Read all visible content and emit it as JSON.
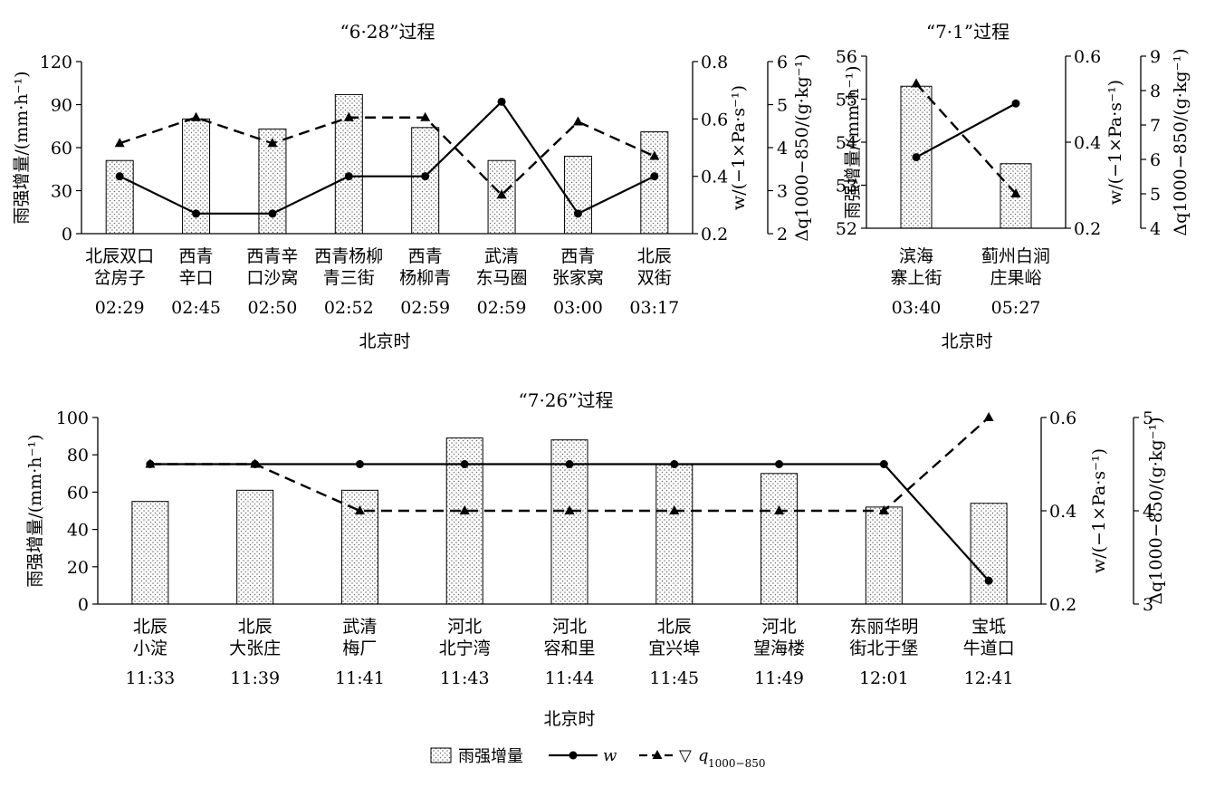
{
  "chart_data": [
    {
      "type": "bar",
      "title": "“6·28”过程",
      "xlabel": "北京时",
      "ylabel": "雨强增量/(mm·h⁻¹)",
      "y2label": "w/(−1×Pa·s⁻¹)",
      "y3label": "Δq1000−850/(g·kg⁻¹)",
      "categories": [
        [
          "北辰双口",
          "岔房子",
          "02:29"
        ],
        [
          "西青",
          "辛口",
          "02:45"
        ],
        [
          "西青辛",
          "口沙窝",
          "02:50"
        ],
        [
          "西青杨柳",
          "青三街",
          "02:52"
        ],
        [
          "西青",
          "杨柳青",
          "02:59"
        ],
        [
          "武清",
          "东马圈",
          "02:59"
        ],
        [
          "西青",
          "张家窝",
          "03:00"
        ],
        [
          "北辰",
          "双街",
          "03:17"
        ]
      ],
      "series": [
        {
          "name": "雨强增量",
          "axis": "left",
          "kind": "bar",
          "values": [
            51,
            80,
            73,
            97,
            74,
            51,
            54,
            71
          ]
        },
        {
          "name": "w",
          "axis": "right1",
          "kind": "line-solid-circle",
          "values": [
            0.4,
            0.27,
            0.27,
            0.4,
            0.4,
            0.66,
            0.27,
            0.4
          ]
        },
        {
          "name": "▽q1000−850",
          "axis": "right2",
          "kind": "line-dashed-triangle",
          "values": [
            4.1,
            4.7,
            4.1,
            4.7,
            4.7,
            2.9,
            4.6,
            3.8
          ]
        }
      ],
      "ylim": [
        0,
        120
      ],
      "yticks": [
        0,
        30,
        60,
        90,
        120
      ],
      "y2lim": [
        0.2,
        0.8
      ],
      "y2ticks": [
        "0.2",
        "0.4",
        "0.6",
        "0.8"
      ],
      "y3lim": [
        2,
        6
      ],
      "y3ticks": [
        "2",
        "3",
        "4",
        "5",
        "6"
      ]
    },
    {
      "type": "bar",
      "title": "“7·1”过程",
      "xlabel": "北京时",
      "ylabel": "雨强增量/(mm·h⁻¹)",
      "y2label": "w/(−1×Pa·s⁻¹)",
      "y3label": "Δq1000−850/(g·kg⁻¹)",
      "categories": [
        [
          "滨海",
          "寨上街",
          "03:40"
        ],
        [
          "蓟州白涧",
          "庄果峪",
          "05:27"
        ]
      ],
      "series": [
        {
          "name": "雨强增量",
          "axis": "left",
          "kind": "bar",
          "values": [
            55.3,
            53.5
          ]
        },
        {
          "name": "w",
          "axis": "right1",
          "kind": "line-solid-circle",
          "values": [
            0.365,
            0.49
          ]
        },
        {
          "name": "▽q1000−850",
          "axis": "right2",
          "kind": "line-dashed-triangle",
          "values": [
            8.2,
            5.0
          ]
        }
      ],
      "ylim": [
        52,
        56
      ],
      "yticks": [
        52,
        53,
        54,
        55,
        56
      ],
      "y2lim": [
        0.2,
        0.6
      ],
      "y2ticks": [
        "0.2",
        "0.4",
        "0.6"
      ],
      "y3lim": [
        4,
        9
      ],
      "y3ticks": [
        "4",
        "5",
        "6",
        "7",
        "8",
        "9"
      ]
    },
    {
      "type": "bar",
      "title": "“7·26”过程",
      "xlabel": "北京时",
      "ylabel": "雨强增量/(mm·h⁻¹)",
      "y2label": "w/(−1×Pa·s⁻¹)",
      "y3label": "Δq1000−850/(g·kg⁻¹)",
      "categories": [
        [
          "北辰",
          "小淀",
          "11:33"
        ],
        [
          "北辰",
          "大张庄",
          "11:39"
        ],
        [
          "武清",
          "梅厂",
          "11:41"
        ],
        [
          "河北",
          "北宁湾",
          "11:43"
        ],
        [
          "河北",
          "容和里",
          "11:44"
        ],
        [
          "北辰",
          "宜兴埠",
          "11:45"
        ],
        [
          "河北",
          "望海楼",
          "11:49"
        ],
        [
          "东丽华明",
          "街北于堡",
          "12:01"
        ],
        [
          "宝坻",
          "牛道口",
          "12:41"
        ]
      ],
      "series": [
        {
          "name": "雨强增量",
          "axis": "left",
          "kind": "bar",
          "values": [
            55,
            61,
            61,
            89,
            88,
            75,
            70,
            52,
            54
          ]
        },
        {
          "name": "w",
          "axis": "right1",
          "kind": "line-solid-circle",
          "values": [
            0.5,
            0.5,
            0.5,
            0.5,
            0.5,
            0.5,
            0.5,
            0.5,
            0.25
          ]
        },
        {
          "name": "▽q1000−850",
          "axis": "right2",
          "kind": "line-dashed-triangle",
          "values": [
            4.5,
            4.5,
            4.0,
            4.0,
            4.0,
            4.0,
            4.0,
            4.0,
            5.0
          ]
        }
      ],
      "ylim": [
        0,
        100
      ],
      "yticks": [
        0,
        20,
        40,
        60,
        80,
        100
      ],
      "y2lim": [
        0.2,
        0.6
      ],
      "y2ticks": [
        "0.2",
        "0.4",
        "0.6"
      ],
      "y3lim": [
        3,
        5
      ],
      "y3ticks": [
        "3",
        "4",
        "5"
      ]
    }
  ],
  "legend": {
    "bar_label": "雨强增量",
    "w_label": "w",
    "q_symbol": "▽",
    "q_label": "q",
    "q_sub": "1000−850"
  }
}
